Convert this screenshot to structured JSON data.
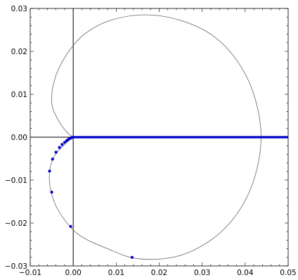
{
  "chart_data": {
    "type": "scatter",
    "title": "",
    "xlabel": "",
    "ylabel": "",
    "xlim": [
      -0.01,
      0.05
    ],
    "ylim": [
      -0.03,
      0.03
    ],
    "grid": false,
    "x_ticks": [
      {
        "value": -0.01,
        "label": "−0.01"
      },
      {
        "value": 0.0,
        "label": "0.00"
      },
      {
        "value": 0.01,
        "label": "0.01"
      },
      {
        "value": 0.02,
        "label": "0.02"
      },
      {
        "value": 0.03,
        "label": "0.03"
      },
      {
        "value": 0.04,
        "label": "0.04"
      },
      {
        "value": 0.05,
        "label": "0.05"
      }
    ],
    "y_ticks": [
      {
        "value": 0.03,
        "label": "0.03"
      },
      {
        "value": 0.02,
        "label": "0.02"
      },
      {
        "value": 0.01,
        "label": "0.01"
      },
      {
        "value": 0.0,
        "label": "0.00"
      },
      {
        "value": -0.01,
        "label": "−0.01"
      },
      {
        "value": -0.02,
        "label": "−0.02"
      },
      {
        "value": -0.03,
        "label": "−0.03"
      }
    ],
    "colors": {
      "curve": "#777777",
      "points": "#0000cc",
      "axes": "#000000"
    },
    "curve": {
      "name": "",
      "points": [
        [
          0.0,
          0.0
        ],
        [
          -0.0015,
          0.0012
        ],
        [
          -0.0035,
          0.004
        ],
        [
          -0.005,
          0.008
        ],
        [
          -0.0043,
          0.0135
        ],
        [
          -0.002,
          0.0185
        ],
        [
          0.002,
          0.0235
        ],
        [
          0.008,
          0.027
        ],
        [
          0.016,
          0.0285
        ],
        [
          0.024,
          0.0275
        ],
        [
          0.032,
          0.024
        ],
        [
          0.038,
          0.018
        ],
        [
          0.042,
          0.01
        ],
        [
          0.0437,
          0.0
        ],
        [
          0.042,
          -0.01
        ],
        [
          0.038,
          -0.018
        ],
        [
          0.032,
          -0.024
        ],
        [
          0.024,
          -0.0278
        ],
        [
          0.015,
          -0.0283
        ],
        [
          0.008,
          -0.026
        ],
        [
          0.001,
          -0.0225
        ],
        [
          -0.0035,
          -0.017
        ],
        [
          -0.0053,
          -0.012
        ],
        [
          -0.0055,
          -0.008
        ],
        [
          -0.0047,
          -0.005
        ],
        [
          -0.0033,
          -0.003
        ],
        [
          -0.0018,
          -0.0015
        ],
        [
          -0.0008,
          -0.0006
        ],
        [
          0.0,
          0.0
        ]
      ]
    },
    "series": [
      {
        "name": "",
        "points": [
          [
            0.0137,
            -0.028
          ],
          [
            -0.0006,
            -0.0208
          ],
          [
            -0.005,
            -0.0128
          ],
          [
            -0.0055,
            -0.0079
          ],
          [
            -0.0048,
            -0.0051
          ],
          [
            -0.004,
            -0.0035
          ],
          [
            -0.0032,
            -0.0024
          ],
          [
            -0.0026,
            -0.0017
          ],
          [
            -0.002,
            -0.0012
          ],
          [
            -0.0015,
            -0.0008
          ],
          [
            -0.0011,
            -0.0005
          ],
          [
            -0.0008,
            -0.0003
          ],
          [
            -0.0005,
            -0.00015
          ],
          [
            -0.0002,
            -5e-05
          ]
        ],
        "line_points": [
          [
            0.0,
            0.0
          ],
          [
            0.05,
            0.0
          ]
        ]
      }
    ]
  }
}
